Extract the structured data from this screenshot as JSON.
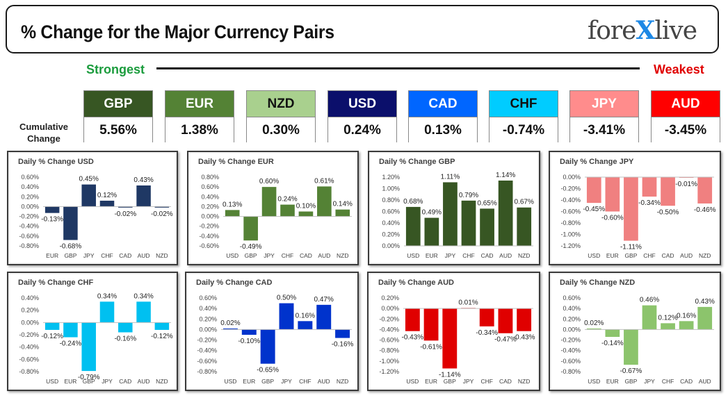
{
  "header": {
    "title": "% Change for the Major Currency Pairs",
    "logo_left": "fore",
    "logo_x": "X",
    "logo_right": "live"
  },
  "strength_scale": {
    "strongest": "Strongest",
    "weakest": "Weakest"
  },
  "cumulative": {
    "label_line1": "Cumulative",
    "label_line2": "Change",
    "currencies": [
      {
        "code": "GBP",
        "value": "5.56%",
        "bg": "#375623",
        "fg": "#FFFFFF"
      },
      {
        "code": "EUR",
        "value": "1.38%",
        "bg": "#548235",
        "fg": "#FFFFFF"
      },
      {
        "code": "NZD",
        "value": "0.30%",
        "bg": "#A9D08E",
        "fg": "#111111"
      },
      {
        "code": "USD",
        "value": "0.24%",
        "bg": "#0B0F6B",
        "fg": "#FFFFFF"
      },
      {
        "code": "CAD",
        "value": "0.13%",
        "bg": "#0066FF",
        "fg": "#FFFFFF"
      },
      {
        "code": "CHF",
        "value": "-0.74%",
        "bg": "#00CCFF",
        "fg": "#111111"
      },
      {
        "code": "JPY",
        "value": "-3.41%",
        "bg": "#FF8C8C",
        "fg": "#FFFFFF"
      },
      {
        "code": "AUD",
        "value": "-3.45%",
        "bg": "#FF0000",
        "fg": "#FFFFFF"
      }
    ]
  },
  "chart_data": [
    {
      "type": "bar",
      "title": "Daily % Change USD",
      "color": "#1F3864",
      "categories": [
        "EUR",
        "GBP",
        "JPY",
        "CHF",
        "CAD",
        "AUD",
        "NZD"
      ],
      "values": [
        -0.13,
        -0.68,
        0.45,
        0.12,
        -0.02,
        0.43,
        -0.02
      ],
      "labels": [
        "-0.13%",
        "-0.68%",
        "0.45%",
        "0.12%",
        "-0.02%",
        "0.43%",
        "-0.02%"
      ],
      "yticks": [
        0.6,
        0.4,
        0.2,
        0.0,
        -0.2,
        -0.4,
        -0.6,
        -0.8
      ],
      "ytick_labels": [
        "0.60%",
        "0.40%",
        "0.20%",
        "0.00%",
        "-0.20%",
        "-0.40%",
        "-0.60%",
        "-0.80%"
      ],
      "ylim": [
        -0.8,
        0.6
      ]
    },
    {
      "type": "bar",
      "title": "Daily % Change EUR",
      "color": "#548235",
      "categories": [
        "USD",
        "GBP",
        "JPY",
        "CHF",
        "CAD",
        "AUD",
        "NZD"
      ],
      "values": [
        0.13,
        -0.49,
        0.6,
        0.24,
        0.1,
        0.61,
        0.14
      ],
      "labels": [
        "0.13%",
        "-0.49%",
        "0.60%",
        "0.24%",
        "0.10%",
        "0.61%",
        "0.14%"
      ],
      "yticks": [
        0.8,
        0.6,
        0.4,
        0.2,
        0.0,
        -0.2,
        -0.4,
        -0.6
      ],
      "ytick_labels": [
        "0.80%",
        "0.60%",
        "0.40%",
        "0.20%",
        "0.00%",
        "-0.20%",
        "-0.40%",
        "-0.60%"
      ],
      "ylim": [
        -0.6,
        0.8
      ]
    },
    {
      "type": "bar",
      "title": "Daily % Change GBP",
      "color": "#375623",
      "categories": [
        "USD",
        "EUR",
        "JPY",
        "CHF",
        "CAD",
        "AUD",
        "NZD"
      ],
      "values": [
        0.68,
        0.49,
        1.11,
        0.79,
        0.65,
        1.14,
        0.67
      ],
      "labels": [
        "0.68%",
        "0.49%",
        "1.11%",
        "0.79%",
        "0.65%",
        "1.14%",
        "0.67%"
      ],
      "yticks": [
        1.2,
        1.0,
        0.8,
        0.6,
        0.4,
        0.2,
        0.0
      ],
      "ytick_labels": [
        "1.20%",
        "1.00%",
        "0.80%",
        "0.60%",
        "0.40%",
        "0.20%",
        "0.00%"
      ],
      "ylim": [
        0,
        1.2
      ]
    },
    {
      "type": "bar",
      "title": "Daily % Change JPY",
      "color": "#F08080",
      "categories": [
        "USD",
        "EUR",
        "GBP",
        "CHF",
        "CAD",
        "AUD",
        "NZD"
      ],
      "values": [
        -0.45,
        -0.6,
        -1.11,
        -0.34,
        -0.5,
        -0.01,
        -0.46
      ],
      "labels": [
        "-0.45%",
        "-0.60%",
        "-1.11%",
        "-0.34%",
        "-0.50%",
        "-0.01%",
        "-0.46%"
      ],
      "yticks": [
        0.0,
        -0.2,
        -0.4,
        -0.6,
        -0.8,
        -1.0,
        -1.2
      ],
      "ytick_labels": [
        "0.00%",
        "-0.20%",
        "-0.40%",
        "-0.60%",
        "-0.80%",
        "-1.00%",
        "-1.20%"
      ],
      "ylim": [
        -1.2,
        0
      ]
    },
    {
      "type": "bar",
      "title": "Daily % Change CHF",
      "color": "#00C0F0",
      "categories": [
        "USD",
        "EUR",
        "GBP",
        "JPY",
        "CAD",
        "AUD",
        "NZD"
      ],
      "values": [
        -0.12,
        -0.24,
        -0.79,
        0.34,
        -0.16,
        0.34,
        -0.12
      ],
      "labels": [
        "-0.12%",
        "-0.24%",
        "-0.79%",
        "0.34%",
        "-0.16%",
        "0.34%",
        "-0.12%"
      ],
      "yticks": [
        0.4,
        0.2,
        0.0,
        -0.2,
        -0.4,
        -0.6,
        -0.8
      ],
      "ytick_labels": [
        "0.40%",
        "0.20%",
        "0.00%",
        "-0.20%",
        "-0.40%",
        "-0.60%",
        "-0.80%"
      ],
      "ylim": [
        -0.8,
        0.4
      ]
    },
    {
      "type": "bar",
      "title": "Daily % Change CAD",
      "color": "#0033CC",
      "categories": [
        "USD",
        "EUR",
        "GBP",
        "JPY",
        "CHF",
        "AUD",
        "NZD"
      ],
      "values": [
        0.02,
        -0.1,
        -0.65,
        0.5,
        0.16,
        0.47,
        -0.16
      ],
      "labels": [
        "0.02%",
        "-0.10%",
        "-0.65%",
        "0.50%",
        "0.16%",
        "0.47%",
        "-0.16%"
      ],
      "yticks": [
        0.6,
        0.4,
        0.2,
        0.0,
        -0.2,
        -0.4,
        -0.6,
        -0.8
      ],
      "ytick_labels": [
        "0.60%",
        "0.40%",
        "0.20%",
        "0.00%",
        "-0.20%",
        "-0.40%",
        "-0.60%",
        "-0.80%"
      ],
      "ylim": [
        -0.8,
        0.6
      ]
    },
    {
      "type": "bar",
      "title": "Daily % Change AUD",
      "color": "#E00000",
      "categories": [
        "USD",
        "EUR",
        "GBP",
        "JPY",
        "CHF",
        "CAD",
        "NZD"
      ],
      "values": [
        -0.43,
        -0.61,
        -1.14,
        0.01,
        -0.34,
        -0.47,
        -0.43
      ],
      "labels": [
        "-0.43%",
        "-0.61%",
        "-1.14%",
        "0.01%",
        "-0.34%",
        "-0.47%",
        "-0.43%"
      ],
      "yticks": [
        0.2,
        0.0,
        -0.2,
        -0.4,
        -0.6,
        -0.8,
        -1.0,
        -1.2
      ],
      "ytick_labels": [
        "0.20%",
        "0.00%",
        "-0.20%",
        "-0.40%",
        "-0.60%",
        "-0.80%",
        "-1.00%",
        "-1.20%"
      ],
      "ylim": [
        -1.2,
        0.2
      ]
    },
    {
      "type": "bar",
      "title": "Daily % Change NZD",
      "color": "#8CC46C",
      "categories": [
        "USD",
        "EUR",
        "GBP",
        "JPY",
        "CHF",
        "CAD",
        "AUD"
      ],
      "values": [
        0.02,
        -0.14,
        -0.67,
        0.46,
        0.12,
        0.16,
        0.43
      ],
      "labels": [
        "0.02%",
        "-0.14%",
        "-0.67%",
        "0.46%",
        "0.12%",
        "0.16%",
        "0.43%"
      ],
      "yticks": [
        0.6,
        0.4,
        0.2,
        0.0,
        -0.2,
        -0.4,
        -0.6,
        -0.8
      ],
      "ytick_labels": [
        "0.60%",
        "0.40%",
        "0.20%",
        "0.00%",
        "-0.20%",
        "-0.40%",
        "-0.60%",
        "-0.80%"
      ],
      "ylim": [
        -0.8,
        0.6
      ]
    }
  ]
}
